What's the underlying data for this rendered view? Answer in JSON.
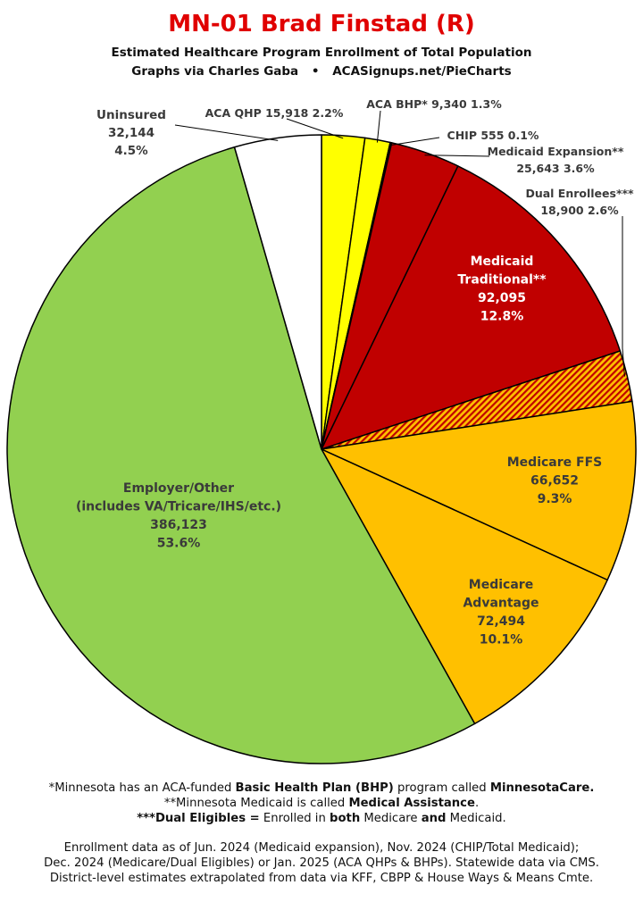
{
  "header": {
    "title": "MN-01 Brad Finstad (R)",
    "subtitle_line1": "Estimated Healthcare Program Enrollment of Total Population",
    "subtitle_line2_a": "Graphs via Charles Gaba",
    "subtitle_line2_sep": "•",
    "subtitle_line2_b": "ACASignups.net/PieCharts"
  },
  "colors": {
    "aca_qhp": "#ffff00",
    "aca_bhp": "#ffff00",
    "chip": "#8b0000",
    "medicaid_expansion": "#c00000",
    "medicaid_traditional": "#c00000",
    "dual": "#ffc000",
    "dual_hatch": "#c00000",
    "medicare_ffs": "#ffc000",
    "medicare_advantage": "#ffc000",
    "employer": "#92d050",
    "uninsured": "#ffffff",
    "title": "#e00000"
  },
  "chart_data": {
    "type": "pie",
    "slices": [
      {
        "key": "aca_qhp",
        "name": "ACA QHP",
        "value": 15918,
        "pct": "2.2%",
        "label": "ACA QHP 15,918 2.2%"
      },
      {
        "key": "aca_bhp",
        "name": "ACA BHP*",
        "value": 9340,
        "pct": "1.3%",
        "label": "ACA BHP* 9,340 1.3%"
      },
      {
        "key": "chip",
        "name": "CHIP",
        "value": 555,
        "pct": "0.1%",
        "label": "CHIP 555 0.1%"
      },
      {
        "key": "medicaid_expansion",
        "name": "Medicaid Expansion**",
        "value": 25643,
        "pct": "3.6%",
        "label_lines": [
          "Medicaid Expansion**",
          "25,643 3.6%"
        ]
      },
      {
        "key": "medicaid_traditional",
        "name": "Medicaid Traditional**",
        "value": 92095,
        "pct": "12.8%",
        "label_lines": [
          "Medicaid",
          "Traditional**",
          "92,095",
          "12.8%"
        ]
      },
      {
        "key": "dual",
        "name": "Dual Enrollees***",
        "value": 18900,
        "pct": "2.6%",
        "label_lines": [
          "Dual Enrollees***",
          "18,900 2.6%"
        ]
      },
      {
        "key": "medicare_ffs",
        "name": "Medicare FFS",
        "value": 66652,
        "pct": "9.3%",
        "label_lines": [
          "Medicare FFS",
          "66,652",
          "9.3%"
        ]
      },
      {
        "key": "medicare_advantage",
        "name": "Medicare Advantage",
        "value": 72494,
        "pct": "10.1%",
        "label_lines": [
          "Medicare",
          "Advantage",
          "72,494",
          "10.1%"
        ]
      },
      {
        "key": "employer",
        "name": "Employer/Other (includes VA/Tricare/IHS/etc.)",
        "value": 386123,
        "pct": "53.6%",
        "label_lines": [
          "Employer/Other",
          "(includes VA/Tricare/IHS/etc.)",
          "386,123",
          "53.6%"
        ]
      },
      {
        "key": "uninsured",
        "name": "Uninsured",
        "value": 32144,
        "pct": "4.5%",
        "label_lines": [
          "Uninsured",
          "32,144",
          "4.5%"
        ]
      }
    ]
  },
  "footnotes": {
    "line1_a": "*Minnesota has an ACA-funded ",
    "line1_b": "Basic Health Plan (BHP)",
    "line1_c": " program called ",
    "line1_d": "MinnesotaCare.",
    "line2_a": "**Minnesota Medicaid is called ",
    "line2_b": "Medical Assistance",
    "line2_c": ".",
    "line3_a": "***Dual Eligibles =",
    "line3_b": " Enrolled in ",
    "line3_c": "both",
    "line3_d": " Medicare ",
    "line3_e": "and",
    "line3_f": " Medicaid."
  },
  "sources": {
    "line1": "Enrollment data as of Jun. 2024 (Medicaid expansion), Nov. 2024 (CHIP/Total Medicaid);",
    "line2": "Dec. 2024 (Medicare/Dual Eligibles) or Jan. 2025 (ACA QHPs & BHPs). Statewide data via CMS.",
    "line3": "District-level estimates extrapolated from data via KFF, CBPP & House Ways & Means Cmte."
  }
}
